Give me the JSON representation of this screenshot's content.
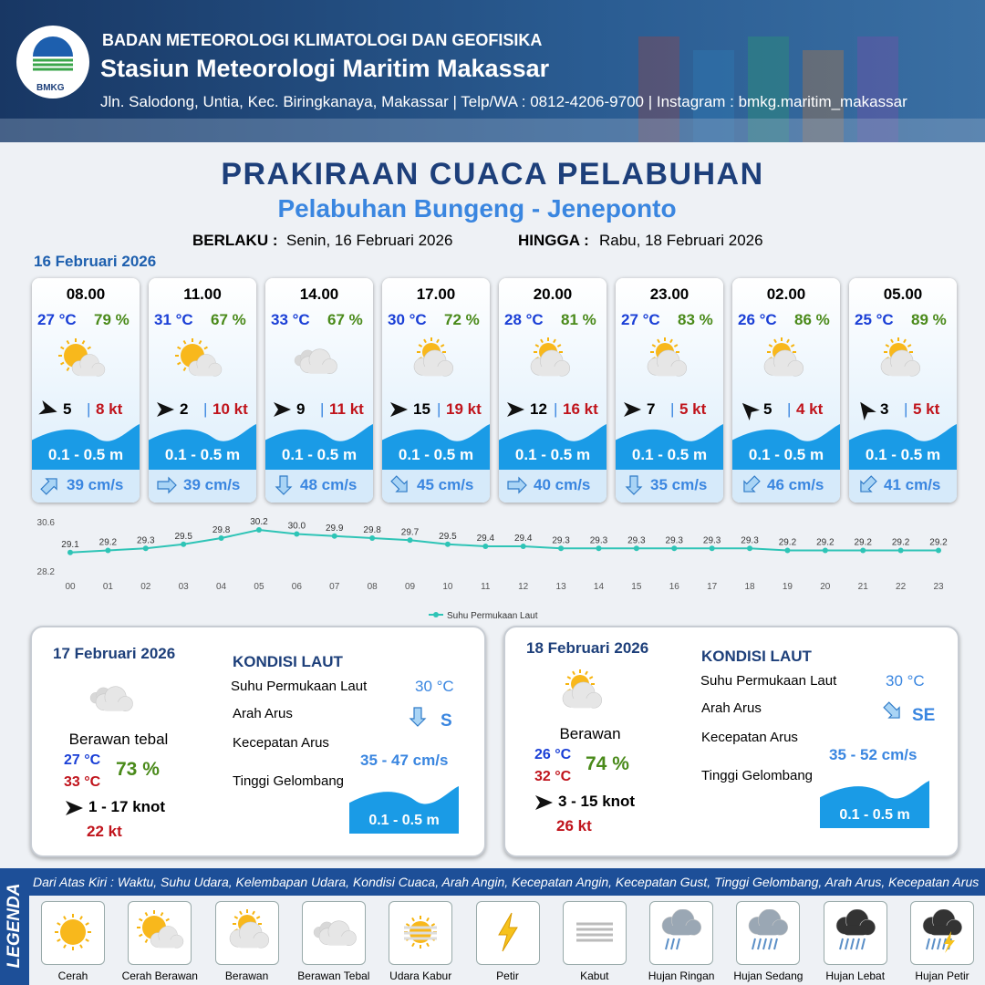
{
  "header": {
    "logo_text": "BMKG",
    "agency": "BADAN METEOROLOGI KLIMATOLOGI DAN GEOFISIKA",
    "station": "Stasiun Meteorologi Maritim Makassar",
    "address": "Jln. Salodong, Untia, Kec. Biringkanaya, Makassar | Telp/WA : 0812-4206-9700 | Instagram : bmkg.maritim_makassar"
  },
  "title": "PRAKIRAAN CUACA PELABUHAN",
  "subtitle": "Pelabuhan Bungeng - Jeneponto",
  "validity": {
    "from_label": "BERLAKU :",
    "from": "Senin, 16 Februari 2026",
    "to_label": "HINGGA :",
    "to": "Rabu, 18 Februari 2026"
  },
  "today": {
    "date": "16 Februari 2026",
    "forecasts": [
      {
        "time": "08.00",
        "temp": "27 °C",
        "humidity": "79 %",
        "wind": "5",
        "gust": "8 kt",
        "wave": "0.1 - 0.5 m",
        "current": "39 cm/s"
      },
      {
        "time": "11.00",
        "temp": "31 °C",
        "humidity": "67 %",
        "wind": "2",
        "gust": "10 kt",
        "wave": "0.1 - 0.5 m",
        "current": "39 cm/s"
      },
      {
        "time": "14.00",
        "temp": "33 °C",
        "humidity": "67 %",
        "wind": "9",
        "gust": "11 kt",
        "wave": "0.1 - 0.5 m",
        "current": "48 cm/s"
      },
      {
        "time": "17.00",
        "temp": "30 °C",
        "humidity": "72 %",
        "wind": "15",
        "gust": "19 kt",
        "wave": "0.1 - 0.5 m",
        "current": "45 cm/s"
      },
      {
        "time": "20.00",
        "temp": "28 °C",
        "humidity": "81 %",
        "wind": "12",
        "gust": "16 kt",
        "wave": "0.1 - 0.5 m",
        "current": "40 cm/s"
      },
      {
        "time": "23.00",
        "temp": "27 °C",
        "humidity": "83 %",
        "wind": "7",
        "gust": "5 kt",
        "wave": "0.1 - 0.5 m",
        "current": "35 cm/s"
      },
      {
        "time": "02.00",
        "temp": "26 °C",
        "humidity": "86 %",
        "wind": "5",
        "gust": "4 kt",
        "wave": "0.1 - 0.5 m",
        "current": "46 cm/s"
      },
      {
        "time": "05.00",
        "temp": "25 °C",
        "humidity": "89 %",
        "wind": "3",
        "gust": "5 kt",
        "wave": "0.1 - 0.5 m",
        "current": "41 cm/s"
      }
    ]
  },
  "chart_data": {
    "type": "line",
    "categories": [
      "00",
      "01",
      "02",
      "03",
      "04",
      "05",
      "06",
      "07",
      "08",
      "09",
      "10",
      "11",
      "12",
      "13",
      "14",
      "15",
      "16",
      "17",
      "18",
      "19",
      "20",
      "21",
      "22",
      "23"
    ],
    "series": [
      {
        "name": "Suhu Permukaan Laut",
        "color": "#2ec4b6",
        "values": [
          29.1,
          29.2,
          29.3,
          29.5,
          29.8,
          30.2,
          30.0,
          29.9,
          29.8,
          29.7,
          29.5,
          29.4,
          29.4,
          29.3,
          29.3,
          29.3,
          29.3,
          29.3,
          29.3,
          29.2,
          29.2,
          29.2,
          29.2,
          29.2
        ],
        "value_labels": [
          "29.1",
          "29.2",
          "29.3",
          "29.5",
          "29.8",
          "30.2",
          "30.0",
          "29.9",
          "29.8",
          "29.7",
          "29.5",
          "29.4",
          "29.4",
          "29.3",
          "29.3",
          "29.3",
          "29.3",
          "29.3",
          "29.3",
          "29.2",
          "29.2",
          "29.2",
          "29.2",
          "29.2"
        ]
      }
    ],
    "ylim": [
      28.2,
      30.6
    ],
    "yticks": [
      28.2,
      30.6
    ],
    "grid": false,
    "legend": "bottom"
  },
  "days": [
    {
      "date": "17 Februari 2026",
      "condition": "Berawan tebal",
      "temp_min": "27 °C",
      "temp_max": "33 °C",
      "humidity": "73 %",
      "wind": "1 - 17 knot",
      "gust": "22 kt",
      "sea": {
        "title": "KONDISI LAUT",
        "sst_label": "Suhu Permukaan Laut",
        "sst": "30 °C",
        "dir_label": "Arah Arus",
        "dir": "S",
        "speed_label": "Kecepatan Arus",
        "speed": "35 - 47 cm/s",
        "wave_label": "Tinggi Gelombang",
        "wave": "0.1 - 0.5 m"
      }
    },
    {
      "date": "18 Februari 2026",
      "condition": "Berawan",
      "temp_min": "26 °C",
      "temp_max": "32 °C",
      "humidity": "74 %",
      "wind": "3 - 15 knot",
      "gust": "26 kt",
      "sea": {
        "title": "KONDISI LAUT",
        "sst_label": "Suhu Permukaan Laut",
        "sst": "30 °C",
        "dir_label": "Arah Arus",
        "dir": "SE",
        "speed_label": "Kecepatan Arus",
        "speed": "35 - 52 cm/s",
        "wave_label": "Tinggi Gelombang",
        "wave": "0.1 - 0.5 m"
      }
    }
  ],
  "legend": {
    "title": "LEGENDA",
    "description": "Dari Atas Kiri : Waktu, Suhu Udara, Kelembapan Udara, Kondisi Cuaca, Arah Angin, Kecepatan Angin, Kecepatan Gust, Tinggi Gelombang, Arah Arus, Kecepatan Arus",
    "items": [
      "Cerah",
      "Cerah Berawan",
      "Berawan",
      "Berawan Tebal",
      "Udara Kabur",
      "Petir",
      "Kabut",
      "Hujan Ringan",
      "Hujan Sedang",
      "Hujan Lebat",
      "Hujan Petir"
    ]
  }
}
